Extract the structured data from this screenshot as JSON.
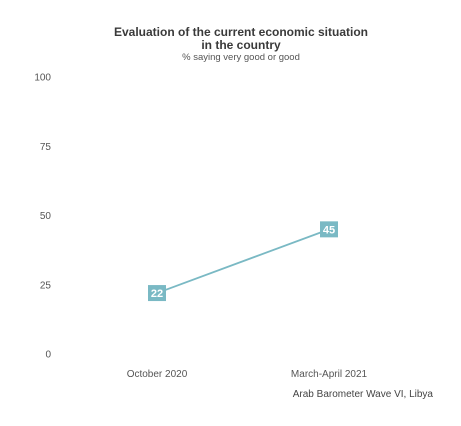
{
  "chart_data": {
    "type": "line",
    "title_line1": "Evaluation of the current economic situation",
    "title_line2": "in the country",
    "subtitle": "% saying very good or good",
    "categories": [
      "October 2020",
      "March-April 2021"
    ],
    "series": [
      {
        "values": [
          22,
          45
        ],
        "data_labels": [
          "22",
          "45"
        ]
      }
    ],
    "yticks": [
      "0",
      "25",
      "50",
      "75",
      "100"
    ],
    "ylim": [
      0,
      100
    ],
    "grid": false,
    "legend": "none",
    "source": "Arab Barometer Wave VI, Libya",
    "colors": {
      "line": "#7ab9c4",
      "marker": "#7ab9c4"
    }
  }
}
